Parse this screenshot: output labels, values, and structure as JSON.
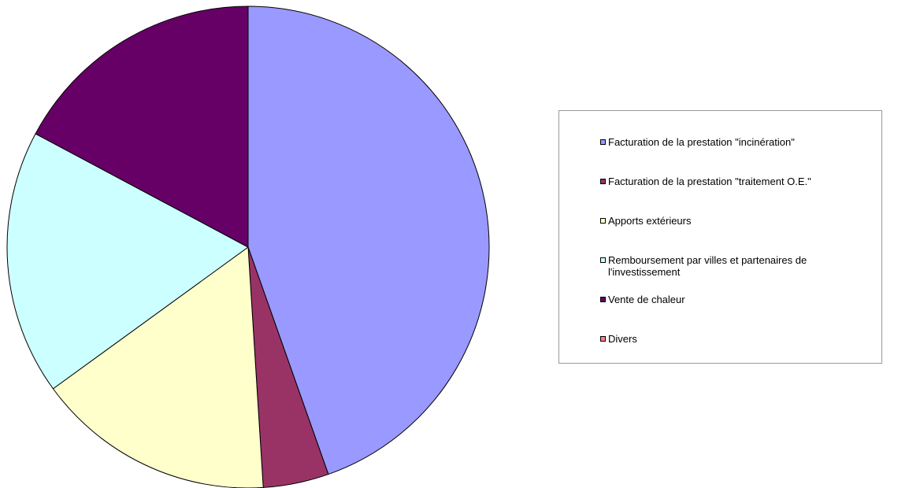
{
  "chart_data": {
    "type": "pie",
    "categories": [
      "Facturation de la prestation \"incinération\"",
      "Facturation de la prestation \"traitement O.E.\"",
      "Apports extérieurs",
      "Remboursement par villes et partenaires de l'investissement",
      "Vente de chaleur",
      "Divers"
    ],
    "values": [
      44.6,
      4.4,
      16.0,
      17.8,
      17.2,
      0
    ],
    "colors": [
      "#9999ff",
      "#993366",
      "#ffffcc",
      "#ccffff",
      "#660066",
      "#ff8080"
    ],
    "legend": "right"
  }
}
